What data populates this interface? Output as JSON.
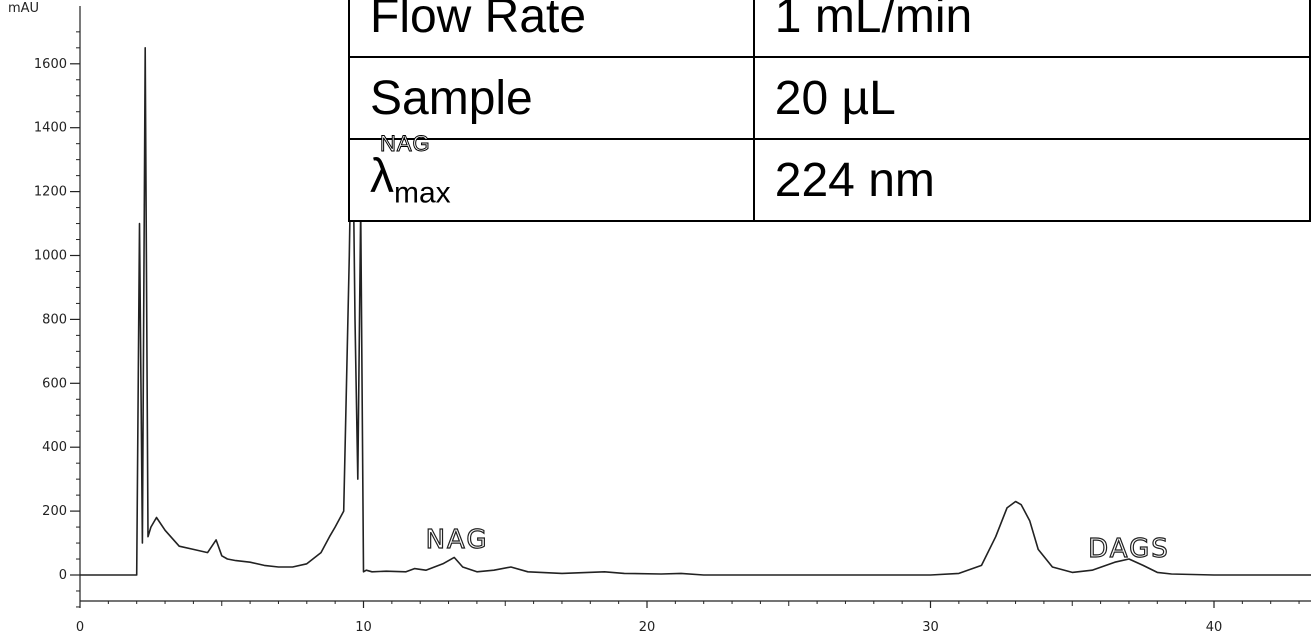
{
  "chart_data": {
    "type": "line",
    "xlabel": "",
    "ylabel": "mAU",
    "xlim": [
      0,
      44
    ],
    "ylim": [
      -100,
      1700
    ],
    "x_ticks": [
      "0",
      "10",
      "20",
      "30",
      "40"
    ],
    "y_ticks": [
      "0",
      "200",
      "400",
      "600",
      "800",
      "1000",
      "1200",
      "1400",
      "1600"
    ],
    "grid": false,
    "series": [
      {
        "x": [
          0,
          1.5,
          2.0,
          2.1,
          2.2,
          2.3,
          2.4,
          2.5,
          2.7,
          3.0,
          3.5,
          4.0,
          4.5,
          4.8,
          5.0,
          5.2,
          5.5,
          6.0,
          6.5,
          7.0,
          7.5,
          8.0,
          8.5,
          8.8,
          9.0,
          9.3,
          9.5,
          9.6,
          9.7,
          9.8,
          9.9,
          10.0,
          10.1,
          10.3,
          10.8,
          11.5,
          11.8,
          12.2,
          12.8,
          13.2,
          13.5,
          14.0,
          14.6,
          15.2,
          15.8,
          17,
          18.5,
          19.2,
          20.5,
          21.2,
          22,
          25,
          28,
          30,
          31,
          31.8,
          32.3,
          32.7,
          33.0,
          33.2,
          33.5,
          33.8,
          34.3,
          35.0,
          35.7,
          36.5,
          37.0,
          37.5,
          38.0,
          38.5,
          40,
          42,
          44
        ],
        "values": [
          0,
          0,
          0,
          1100,
          100,
          1650,
          120,
          150,
          180,
          140,
          90,
          80,
          70,
          110,
          60,
          50,
          45,
          40,
          30,
          25,
          25,
          35,
          70,
          120,
          150,
          200,
          1000,
          1550,
          800,
          300,
          1150,
          10,
          15,
          10,
          12,
          10,
          20,
          15,
          35,
          55,
          25,
          10,
          15,
          25,
          10,
          5,
          10,
          5,
          3,
          5,
          0,
          0,
          0,
          0,
          5,
          30,
          120,
          210,
          230,
          220,
          170,
          80,
          25,
          8,
          15,
          40,
          50,
          30,
          8,
          3,
          0,
          0,
          0
        ]
      }
    ],
    "annotations": [
      {
        "label": "NAG",
        "x": 13.3
      },
      {
        "label": "DAGS",
        "x": 37.0
      }
    ]
  },
  "table": {
    "rows": [
      {
        "param": "Flow Rate",
        "value": "1 mL/min"
      },
      {
        "param": "Sample",
        "value": "20 µL"
      },
      {
        "param_symbol": "λ",
        "param_sub": "max",
        "param_sup": "NAG",
        "value": "224 nm"
      }
    ]
  },
  "colors": {
    "line": "#222222",
    "axis": "#222222",
    "table_border": "#000000"
  }
}
